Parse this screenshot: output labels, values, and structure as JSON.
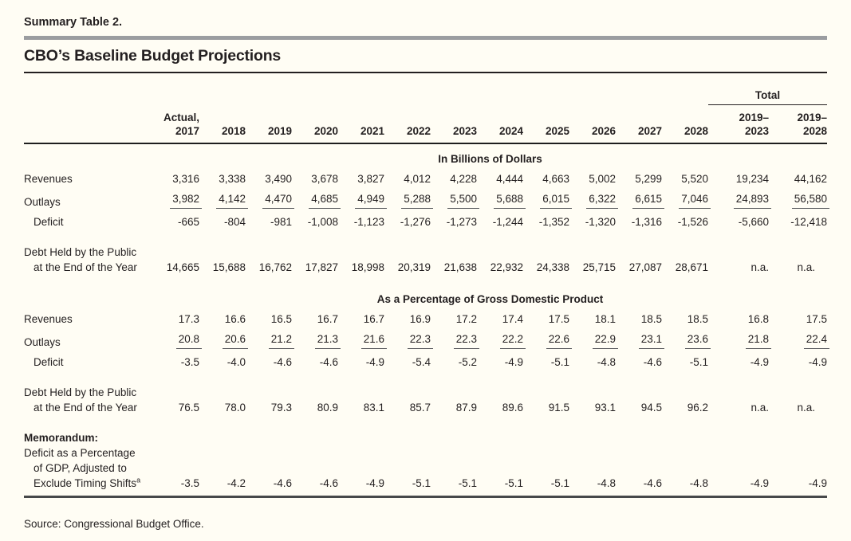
{
  "page": {
    "table_label": "Summary Table 2.",
    "title": "CBO’s Baseline Budget Projections",
    "source": "Source: Congressional Budget Office."
  },
  "colors": {
    "background": "#FFFDF4",
    "divider_gray": "#9B9DA0",
    "rule_dark": "#231F20"
  },
  "table": {
    "total_label": "Total",
    "header": {
      "actual_line1": "Actual,",
      "actual_line2": "2017",
      "years": [
        "2018",
        "2019",
        "2020",
        "2021",
        "2022",
        "2023",
        "2024",
        "2025",
        "2026",
        "2027",
        "2028"
      ],
      "totals": [
        {
          "line1": "2019–",
          "line2": "2023"
        },
        {
          "line1": "2019–",
          "line2": "2028"
        }
      ]
    },
    "rows": [
      {
        "type": "section",
        "text": "In Billions of Dollars"
      },
      {
        "type": "data",
        "label": "Revenues",
        "values": [
          "3,316",
          "3,338",
          "3,490",
          "3,678",
          "3,827",
          "4,012",
          "4,228",
          "4,444",
          "4,663",
          "5,002",
          "5,299",
          "5,520",
          "19,234",
          "44,162"
        ]
      },
      {
        "type": "data",
        "label": "Outlays",
        "sum_rule": true,
        "values": [
          "3,982",
          "4,142",
          "4,470",
          "4,685",
          "4,949",
          "5,288",
          "5,500",
          "5,688",
          "6,015",
          "6,322",
          "6,615",
          "7,046",
          "24,893",
          "56,580"
        ]
      },
      {
        "type": "data",
        "label": "Deficit",
        "indent": 1,
        "values": [
          "-665",
          "-804",
          "-981",
          "-1,008",
          "-1,123",
          "-1,276",
          "-1,273",
          "-1,244",
          "-1,352",
          "-1,320",
          "-1,316",
          "-1,526",
          "-5,660",
          "-12,418"
        ]
      },
      {
        "type": "label",
        "text": "Debt Held by the Public",
        "space_before": true
      },
      {
        "type": "data",
        "label": "at the End of the Year",
        "indent": 1,
        "tight": true,
        "values": [
          "14,665",
          "15,688",
          "16,762",
          "17,827",
          "18,998",
          "20,319",
          "21,638",
          "22,932",
          "24,338",
          "25,715",
          "27,087",
          "28,671",
          "n.a.",
          "n.a."
        ]
      },
      {
        "type": "section",
        "text": "As a Percentage of Gross Domestic Product",
        "space_before": true
      },
      {
        "type": "data",
        "label": "Revenues",
        "values": [
          "17.3",
          "16.6",
          "16.5",
          "16.7",
          "16.7",
          "16.9",
          "17.2",
          "17.4",
          "17.5",
          "18.1",
          "18.5",
          "18.5",
          "16.8",
          "17.5"
        ]
      },
      {
        "type": "data",
        "label": "Outlays",
        "sum_rule": true,
        "values": [
          "20.8",
          "20.6",
          "21.2",
          "21.3",
          "21.6",
          "22.3",
          "22.3",
          "22.2",
          "22.6",
          "22.9",
          "23.1",
          "23.6",
          "21.8",
          "22.4"
        ]
      },
      {
        "type": "data",
        "label": "Deficit",
        "indent": 1,
        "values": [
          "-3.5",
          "-4.0",
          "-4.6",
          "-4.6",
          "-4.9",
          "-5.4",
          "-5.2",
          "-4.9",
          "-5.1",
          "-4.8",
          "-4.6",
          "-5.1",
          "-4.9",
          "-4.9"
        ]
      },
      {
        "type": "label",
        "text": "Debt Held by the Public",
        "space_before": true
      },
      {
        "type": "data",
        "label": "at the End of the Year",
        "indent": 1,
        "tight": true,
        "values": [
          "76.5",
          "78.0",
          "79.3",
          "80.9",
          "83.1",
          "85.7",
          "87.9",
          "89.6",
          "91.5",
          "93.1",
          "94.5",
          "96.2",
          "n.a.",
          "n.a."
        ]
      },
      {
        "type": "label",
        "text": "Memorandum:",
        "bold": true,
        "space_before": true
      },
      {
        "type": "label",
        "text": "Deficit as a Percentage",
        "tight": true
      },
      {
        "type": "label",
        "text": "of GDP, Adjusted to",
        "indent": 1,
        "tight": true
      },
      {
        "type": "data",
        "label": "Exclude Timing Shifts",
        "sup": "a",
        "indent": 1,
        "tight": true,
        "bottom_rule": true,
        "values": [
          "-3.5",
          "-4.2",
          "-4.6",
          "-4.6",
          "-4.9",
          "-5.1",
          "-5.1",
          "-5.1",
          "-5.1",
          "-4.8",
          "-4.6",
          "-4.8",
          "-4.9",
          "-4.9"
        ]
      }
    ]
  }
}
